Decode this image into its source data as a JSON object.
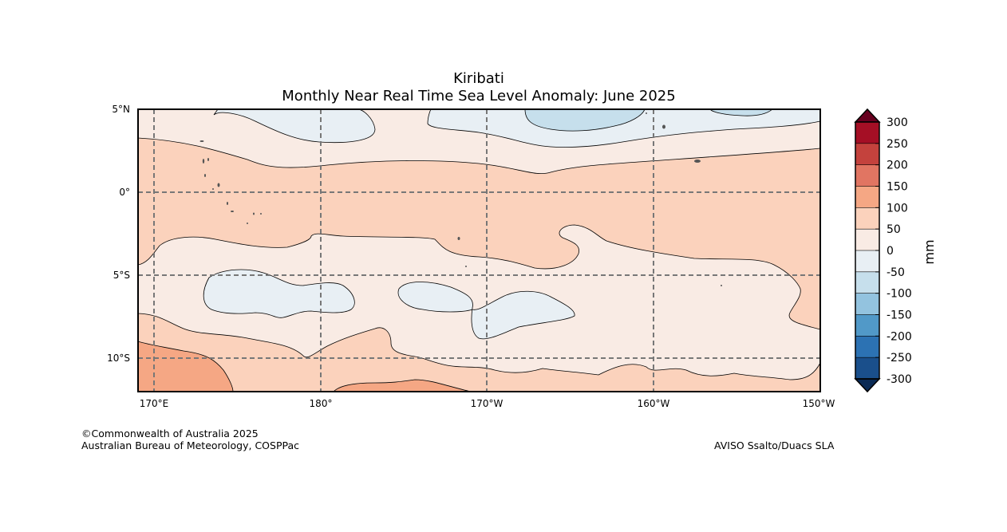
{
  "title": {
    "region": "Kiribati",
    "subtitle": "Monthly Near Real Time Sea Level Anomaly: June 2025"
  },
  "map": {
    "latitude_labels": [
      "5°N",
      "0°",
      "5°S",
      "10°S"
    ],
    "longitude_labels": [
      "170°E",
      "180°",
      "170°W",
      "160°W",
      "150°W"
    ],
    "extent": {
      "lon_min": 169,
      "lon_max": 210,
      "lat_min": -12,
      "lat_max": 5
    },
    "gridlines": "dashed"
  },
  "colorbar": {
    "unit": "mm",
    "levels": [
      "300",
      "250",
      "200",
      "150",
      "100",
      "50",
      "0",
      "-50",
      "-100",
      "-150",
      "-200",
      "-250",
      "-300"
    ],
    "colors": [
      "#a50f25",
      "#c4423d",
      "#e17562",
      "#f5a784",
      "#fbd2bc",
      "#f9ebe4",
      "#e8eff4",
      "#c6dfec",
      "#93c3df",
      "#5199c8",
      "#2c72b3",
      "#1a4f8b"
    ],
    "over_color": "#67001f",
    "under_color": "#0a2a55"
  },
  "credits": {
    "left_line1": "©Commonwealth of Australia 2025",
    "left_line2": "Australian Bureau of Meteorology, COSPPac",
    "right": "AVISO Ssalto/Duacs SLA"
  }
}
